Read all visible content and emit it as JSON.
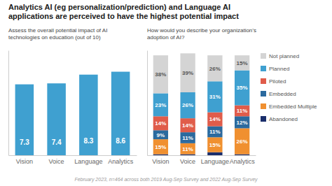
{
  "chart_data": [
    {
      "type": "bar",
      "title": "Analytics AI (eg personalization/prediction) and Language AI\napplications are perceived to have the highest potential impact",
      "subtitle": "Assess the overall potential impact of  AI\ntechnologies on education (out of 10)",
      "footnote": "February 2023, n=464 across both 2019 Aug-Sep Survey and 2022 Aug-Sep Survey",
      "categories": [
        "Vision",
        "Voice",
        "Language",
        "Analytics"
      ],
      "values": [
        7.3,
        7.4,
        8.3,
        8.6
      ],
      "color": "#3fa0d0",
      "ylim": [
        0,
        10.8
      ],
      "grid": false,
      "data_labels": true,
      "tick_labels": "x"
    },
    {
      "type": "bar",
      "subtitle": "How would you describe your organization’s\nadoption of AI?",
      "categories": [
        "Vision",
        "Voice",
        "Language",
        "Analytics"
      ],
      "stacked": true,
      "series": [
        {
          "name": "Not planned",
          "color": "#d4d4d4",
          "values": [
            38,
            39,
            26,
            15
          ],
          "value_labels": [
            "38%",
            "39%",
            "26%",
            "15%"
          ]
        },
        {
          "name": "Planned",
          "color": "#3fa0d0",
          "values": [
            23,
            26,
            31,
            35
          ],
          "value_labels": [
            "23%",
            "26%",
            "31%",
            "35%"
          ]
        },
        {
          "name": "Piloted",
          "color": "#e05c4a",
          "values": [
            14,
            14,
            14,
            11
          ],
          "value_labels": [
            "14%",
            "14%",
            "14%",
            "11%"
          ]
        },
        {
          "name": "Embedded",
          "color": "#2b6a9e",
          "values": [
            9,
            11,
            11,
            12
          ],
          "value_labels": [
            "9%",
            "11%",
            "11%",
            "12%"
          ]
        },
        {
          "name": "Embedded Multiple",
          "color": "#f09030",
          "values": [
            15,
            11,
            15,
            26
          ],
          "value_labels": [
            "15%",
            "11%",
            "15%",
            "26%"
          ]
        },
        {
          "name": "Abandoned",
          "color": "#1a2e6b",
          "values": [
            1,
            1,
            3,
            1
          ],
          "value_labels": [
            null,
            null,
            null,
            null
          ]
        }
      ],
      "ylim": [
        0,
        105
      ],
      "grid": false,
      "data_labels": true,
      "tick_labels": "x",
      "legend": "right"
    }
  ]
}
